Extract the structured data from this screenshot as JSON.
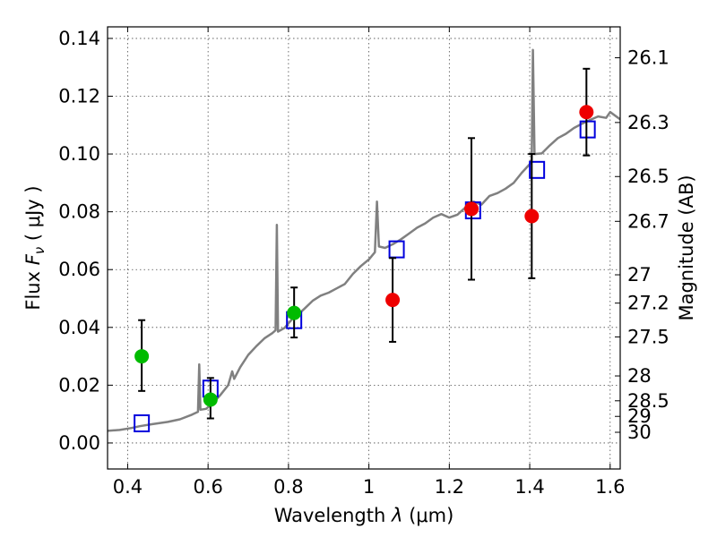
{
  "chart_data": {
    "type": "scatter",
    "xlabel_prefix": "Wavelength  ",
    "xlabel_symbol": "λ",
    "xlabel_unit": " (μm)",
    "ylabel_prefix": "Flux  ",
    "ylabel_symbol": "F",
    "ylabel_subscript": "ν",
    "ylabel_unit": "  ( μJy )",
    "ylabel_right": "Magnitude (AB)",
    "xlim": [
      0.35,
      1.625
    ],
    "ylim": [
      -0.009,
      0.144
    ],
    "grid": true,
    "x_ticks": [
      0.4,
      0.6,
      0.8,
      1.0,
      1.2,
      1.4,
      1.6
    ],
    "x_tick_labels": [
      "0.4",
      "0.6",
      "0.8",
      "1",
      "1.2",
      "1.4",
      "1.6"
    ],
    "y_ticks": [
      0.0,
      0.02,
      0.04,
      0.06,
      0.08,
      0.1,
      0.12,
      0.14
    ],
    "y_tick_labels": [
      "0.00",
      "0.02",
      "0.04",
      "0.06",
      "0.08",
      "0.10",
      "0.12",
      "0.14"
    ],
    "mag_ticks": [
      {
        "label": "26.1",
        "flux": 0.1333
      },
      {
        "label": "26.3",
        "flux": 0.1109
      },
      {
        "label": "26.5",
        "flux": 0.0922
      },
      {
        "label": "26.7",
        "flux": 0.0767
      },
      {
        "label": "27",
        "flux": 0.0582
      },
      {
        "label": "27.2",
        "flux": 0.0484
      },
      {
        "label": "27.5",
        "flux": 0.0367
      },
      {
        "label": "28",
        "flux": 0.0232
      },
      {
        "label": "28.5",
        "flux": 0.0146
      },
      {
        "label": "29",
        "flux": 0.0092
      },
      {
        "label": "30",
        "flux": 0.0037
      }
    ],
    "series": [
      {
        "name": "model-spectrum",
        "kind": "line",
        "color": "#808080",
        "points": [
          [
            0.35,
            0.0042
          ],
          [
            0.38,
            0.0045
          ],
          [
            0.41,
            0.0052
          ],
          [
            0.43,
            0.0058
          ],
          [
            0.46,
            0.0065
          ],
          [
            0.5,
            0.0073
          ],
          [
            0.53,
            0.0082
          ],
          [
            0.56,
            0.0098
          ],
          [
            0.575,
            0.0108
          ],
          [
            0.578,
            0.0272
          ],
          [
            0.581,
            0.0115
          ],
          [
            0.595,
            0.0118
          ],
          [
            0.61,
            0.0135
          ],
          [
            0.63,
            0.0165
          ],
          [
            0.65,
            0.02
          ],
          [
            0.66,
            0.0248
          ],
          [
            0.665,
            0.0222
          ],
          [
            0.68,
            0.0262
          ],
          [
            0.7,
            0.0305
          ],
          [
            0.72,
            0.0335
          ],
          [
            0.74,
            0.0362
          ],
          [
            0.76,
            0.038
          ],
          [
            0.768,
            0.039
          ],
          [
            0.771,
            0.0755
          ],
          [
            0.774,
            0.0385
          ],
          [
            0.79,
            0.0398
          ],
          [
            0.81,
            0.043
          ],
          [
            0.82,
            0.044
          ],
          [
            0.84,
            0.0465
          ],
          [
            0.86,
            0.0492
          ],
          [
            0.88,
            0.051
          ],
          [
            0.9,
            0.052
          ],
          [
            0.92,
            0.0535
          ],
          [
            0.94,
            0.055
          ],
          [
            0.96,
            0.0585
          ],
          [
            0.98,
            0.0612
          ],
          [
            1.0,
            0.0635
          ],
          [
            1.015,
            0.066
          ],
          [
            1.02,
            0.0835
          ],
          [
            1.025,
            0.068
          ],
          [
            1.04,
            0.0675
          ],
          [
            1.06,
            0.0688
          ],
          [
            1.08,
            0.0705
          ],
          [
            1.1,
            0.0725
          ],
          [
            1.12,
            0.0745
          ],
          [
            1.14,
            0.076
          ],
          [
            1.16,
            0.078
          ],
          [
            1.18,
            0.0792
          ],
          [
            1.2,
            0.078
          ],
          [
            1.22,
            0.079
          ],
          [
            1.24,
            0.0815
          ],
          [
            1.26,
            0.0835
          ],
          [
            1.28,
            0.0825
          ],
          [
            1.3,
            0.0855
          ],
          [
            1.32,
            0.0865
          ],
          [
            1.34,
            0.088
          ],
          [
            1.36,
            0.09
          ],
          [
            1.38,
            0.0935
          ],
          [
            1.4,
            0.0965
          ],
          [
            1.405,
            0.098
          ],
          [
            1.408,
            0.136
          ],
          [
            1.412,
            0.1
          ],
          [
            1.43,
            0.1002
          ],
          [
            1.45,
            0.103
          ],
          [
            1.47,
            0.1055
          ],
          [
            1.49,
            0.107
          ],
          [
            1.51,
            0.109
          ],
          [
            1.53,
            0.1105
          ],
          [
            1.55,
            0.1118
          ],
          [
            1.57,
            0.113
          ],
          [
            1.59,
            0.1125
          ],
          [
            1.6,
            0.1145
          ],
          [
            1.625,
            0.112
          ]
        ]
      },
      {
        "name": "model-photometry",
        "kind": "open-square",
        "color": "#0000dd",
        "x": [
          0.435,
          0.606,
          0.814,
          1.069,
          1.259,
          1.418,
          1.544
        ],
        "y": [
          0.0068,
          0.0188,
          0.0425,
          0.067,
          0.0805,
          0.0945,
          0.1085
        ]
      },
      {
        "name": "optical-photometry",
        "kind": "circle",
        "color": "#00bb00",
        "x": [
          0.435,
          0.606,
          0.814
        ],
        "y": [
          0.03,
          0.015,
          0.045
        ],
        "yerr_low": [
          0.012,
          0.0065,
          0.0085
        ],
        "yerr_high": [
          0.0125,
          0.0075,
          0.0088
        ]
      },
      {
        "name": "nir-photometry",
        "kind": "circle",
        "color": "#ee0000",
        "x": [
          1.059,
          1.255,
          1.405,
          1.541
        ],
        "y": [
          0.0495,
          0.081,
          0.0785,
          0.1145
        ],
        "yerr_low": [
          0.0145,
          0.0245,
          0.0215,
          0.015
        ],
        "yerr_high": [
          0.0145,
          0.0245,
          0.0215,
          0.015
        ]
      }
    ]
  }
}
